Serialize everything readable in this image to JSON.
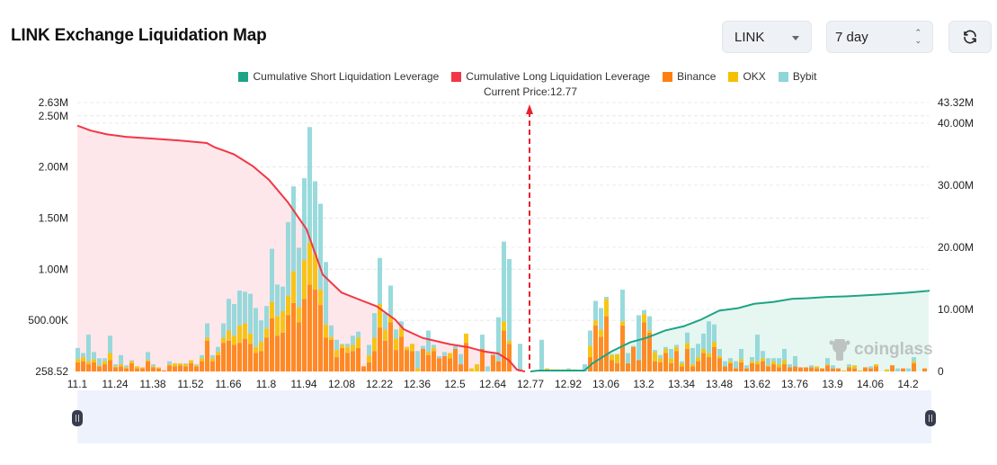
{
  "header": {
    "title": "LINK Exchange Liquidation Map",
    "coin_select": "LINK",
    "period_select": "7 day",
    "refresh_icon": "refresh-icon"
  },
  "legend": [
    {
      "label": "Cumulative Short Liquidation Leverage",
      "color": "#1fa386"
    },
    {
      "label": "Cumulative Long Liquidation Leverage",
      "color": "#f23645"
    },
    {
      "label": "Binance",
      "color": "#ff7f0e"
    },
    {
      "label": "OKX",
      "color": "#f5c000"
    },
    {
      "label": "Bybit",
      "color": "#8ed6d8"
    }
  ],
  "current_price_label": "Current Price:12.77",
  "watermark": "coinglass",
  "chart_data": {
    "type": "bar",
    "stacked": true,
    "current_price": 12.77,
    "ylim": [
      0,
      2.63
    ],
    "y2lim": [
      0,
      43.32
    ],
    "grid": true,
    "legend_position": "top",
    "x_tick_labels": [
      "11.1",
      "11.24",
      "11.38",
      "11.52",
      "11.66",
      "11.8",
      "11.94",
      "12.08",
      "12.22",
      "12.36",
      "12.5",
      "12.64",
      "12.77",
      "12.92",
      "13.06",
      "13.2",
      "13.34",
      "13.48",
      "13.62",
      "13.76",
      "13.9",
      "14.06",
      "14.2"
    ],
    "y_ticks": [
      {
        "value": 0.00025852,
        "label": "258.52"
      },
      {
        "value": 0.5,
        "label": "500.00K"
      },
      {
        "value": 1.0,
        "label": "1.00M"
      },
      {
        "value": 1.5,
        "label": "1.50M"
      },
      {
        "value": 2.0,
        "label": "2.00M"
      },
      {
        "value": 2.5,
        "label": "2.50M"
      },
      {
        "value": 2.63,
        "label": "2.63M"
      }
    ],
    "y2_ticks": [
      {
        "value": 0,
        "label": "0"
      },
      {
        "value": 10,
        "label": "10.00M"
      },
      {
        "value": 20,
        "label": "20.00M"
      },
      {
        "value": 30,
        "label": "30.00M"
      },
      {
        "value": 40,
        "label": "40.00M"
      },
      {
        "value": 43.32,
        "label": "43.32M"
      }
    ],
    "prices": [
      11.1,
      11.12,
      11.14,
      11.16,
      11.18,
      11.2,
      11.22,
      11.24,
      11.26,
      11.28,
      11.3,
      11.32,
      11.34,
      11.36,
      11.38,
      11.4,
      11.42,
      11.44,
      11.46,
      11.48,
      11.5,
      11.52,
      11.54,
      11.56,
      11.58,
      11.6,
      11.62,
      11.64,
      11.66,
      11.68,
      11.7,
      11.72,
      11.74,
      11.76,
      11.78,
      11.8,
      11.82,
      11.84,
      11.86,
      11.88,
      11.9,
      11.92,
      11.94,
      11.96,
      11.98,
      12,
      12.02,
      12.04,
      12.06,
      12.08,
      12.1,
      12.12,
      12.14,
      12.16,
      12.18,
      12.2,
      12.22,
      12.24,
      12.26,
      12.28,
      12.3,
      12.32,
      12.34,
      12.36,
      12.38,
      12.4,
      12.42,
      12.44,
      12.46,
      12.48,
      12.5,
      12.52,
      12.54,
      12.56,
      12.58,
      12.6,
      12.62,
      12.64,
      12.66,
      12.68,
      12.7,
      12.72,
      12.74,
      12.76,
      12.78,
      12.8,
      12.82,
      12.84,
      12.86,
      12.88,
      12.9,
      12.92,
      12.94,
      12.96,
      12.98,
      13,
      13.02,
      13.04,
      13.06,
      13.08,
      13.1,
      13.12,
      13.14,
      13.16,
      13.18,
      13.2,
      13.22,
      13.24,
      13.26,
      13.28,
      13.3,
      13.32,
      13.34,
      13.36,
      13.38,
      13.4,
      13.42,
      13.44,
      13.46,
      13.48,
      13.5,
      13.52,
      13.54,
      13.56,
      13.58,
      13.6,
      13.62,
      13.64,
      13.66,
      13.68,
      13.7,
      13.72,
      13.74,
      13.76,
      13.78,
      13.8,
      13.82,
      13.84,
      13.86,
      13.88,
      13.9,
      13.92,
      13.94,
      13.96,
      13.98,
      14,
      14.02,
      14.04,
      14.06,
      14.08,
      14.1,
      14.12,
      14.14,
      14.16,
      14.18,
      14.2,
      14.22,
      14.24
    ],
    "series": [
      {
        "name": "Binance",
        "color": "#ff7f0e",
        "values": [
          0.09,
          0.1,
          0.07,
          0.09,
          0.05,
          0.07,
          0.11,
          0.04,
          0.05,
          0.03,
          0.08,
          0.03,
          0.03,
          0.1,
          0.04,
          0.03,
          0.01,
          0.06,
          0.05,
          0.06,
          0.05,
          0.08,
          0.05,
          0.1,
          0.3,
          0.1,
          0.16,
          0.28,
          0.3,
          0.26,
          0.28,
          0.32,
          0.27,
          0.18,
          0.2,
          0.33,
          0.52,
          0.35,
          0.38,
          0.55,
          0.67,
          0.48,
          0.71,
          0.85,
          0.8,
          0.65,
          0.33,
          0.31,
          0.14,
          0.23,
          0.18,
          0.2,
          0.23,
          0.05,
          0.09,
          0.2,
          0.43,
          0.3,
          0.48,
          0.21,
          0.34,
          0.21,
          0.2,
          0,
          0.22,
          0.16,
          0.2,
          0.13,
          0.15,
          0.13,
          0.22,
          0.07,
          0.28,
          0,
          0,
          0.22,
          0,
          0.16,
          0.1,
          0.4,
          0.27,
          0,
          0.01,
          0,
          0,
          0,
          0,
          0,
          0,
          0.01,
          0,
          0,
          0,
          0,
          0,
          0.14,
          0.45,
          0.34,
          0.54,
          0.11,
          0.08,
          0.45,
          0.08,
          0.24,
          0.11,
          0.48,
          0.38,
          0.1,
          0.09,
          0.18,
          0.08,
          0.2,
          0.05,
          0.22,
          0.05,
          0.1,
          0.18,
          0.14,
          0.24,
          0.13,
          0.05,
          0.08,
          0.03,
          0.09,
          0.03,
          0.08,
          0.07,
          0.1,
          0.05,
          0.07,
          0.04,
          0.07,
          0.04,
          0.05,
          0.04,
          0.04,
          0.04,
          0.03,
          0.03,
          0.06,
          0.03,
          0.03,
          0,
          0.04,
          0.03,
          0,
          0.04,
          0.03,
          0.05,
          0,
          0,
          0.06,
          0,
          0.03,
          0,
          0.08,
          0,
          0.03
        ]
      },
      {
        "name": "OKX",
        "color": "#f5c000",
        "values": [
          0.03,
          0.04,
          0.03,
          0.03,
          0.01,
          0.03,
          0.07,
          0.01,
          0.02,
          0.01,
          0.02,
          0.02,
          0.01,
          0.01,
          0.01,
          0.01,
          0,
          0.01,
          0.03,
          0.02,
          0.02,
          0.03,
          0.01,
          0.03,
          0.03,
          0.03,
          0.03,
          0.05,
          0.1,
          0.09,
          0.17,
          0.15,
          0.1,
          0.06,
          0.09,
          0.09,
          0.16,
          0.19,
          0.21,
          0.19,
          0.31,
          0.15,
          0.38,
          0.41,
          0.35,
          0.15,
          0.13,
          0.03,
          0.07,
          0.03,
          0.06,
          0.06,
          0.1,
          0,
          0.07,
          0.13,
          0.23,
          0.11,
          0.06,
          0.11,
          0.09,
          0.03,
          0.07,
          0.03,
          0,
          0.03,
          0.03,
          0,
          0,
          0.05,
          0,
          0,
          0.09,
          0.03,
          0.07,
          0,
          0,
          0,
          0,
          0.09,
          0.03,
          0,
          0,
          0,
          0,
          0,
          0,
          0.03,
          0.02,
          0.01,
          0.02,
          0.02,
          0.02,
          0.01,
          0,
          0.11,
          0.05,
          0.07,
          0.17,
          0.05,
          0.09,
          0.04,
          0,
          0,
          0,
          0.08,
          0.02,
          0.09,
          0.04,
          0.04,
          0.05,
          0.04,
          0.03,
          0.06,
          0.02,
          0.04,
          0.04,
          0.04,
          0.05,
          0.02,
          0,
          0.02,
          0,
          0.03,
          0,
          0.02,
          0.03,
          0.03,
          0.01,
          0.03,
          0.03,
          0.04,
          0,
          0,
          0,
          0,
          0,
          0.02,
          0,
          0.01,
          0,
          0,
          0.01,
          0.01,
          0.03,
          0.01,
          0,
          0,
          0.02,
          0,
          0.02,
          0,
          0,
          0,
          0,
          0.02,
          0,
          0
        ]
      },
      {
        "name": "Bybit",
        "color": "#8ed6d8",
        "values": [
          0.11,
          0.04,
          0.26,
          0.07,
          0.07,
          0.03,
          0.17,
          0.02,
          0.09,
          0.02,
          0.01,
          0,
          0,
          0.08,
          0.02,
          0,
          0,
          0.03,
          0,
          0,
          0.01,
          0,
          0.01,
          0.03,
          0.14,
          0.03,
          0.05,
          0.14,
          0.31,
          0.31,
          0.34,
          0.31,
          0.39,
          0.38,
          0.21,
          0.22,
          0.52,
          0.31,
          0.24,
          0.72,
          0.83,
          0.58,
          0.8,
          1.13,
          0.71,
          0.84,
          0.61,
          0.11,
          0.1,
          0.01,
          0.03,
          0.09,
          0.06,
          0,
          0.1,
          0.24,
          0.45,
          0.16,
          0.3,
          0.09,
          0.06,
          0,
          0,
          0.17,
          0.03,
          0.21,
          0.03,
          0.02,
          0.04,
          0,
          0.03,
          0.1,
          0,
          0,
          0,
          0.14,
          0.05,
          0.01,
          0.43,
          0.78,
          0.8,
          0,
          0.26,
          0,
          0,
          0,
          0.31,
          0,
          0,
          0,
          0,
          0.01,
          0,
          0,
          0.07,
          0.15,
          0.19,
          0.21,
          0.02,
          0.01,
          0,
          0.31,
          0.1,
          0.01,
          0.44,
          0.04,
          0.14,
          0.02,
          0.03,
          0.02,
          0.09,
          0.02,
          0.02,
          0.1,
          0.16,
          0.13,
          0.15,
          0.31,
          0.17,
          0.07,
          0.05,
          0.03,
          0.07,
          0.1,
          0.03,
          0.04,
          0.26,
          0.07,
          0.07,
          0.03,
          0.06,
          0.11,
          0.03,
          0.1,
          0,
          0,
          0.02,
          0,
          0,
          0.06,
          0.03,
          0,
          0,
          0.02,
          0,
          0,
          0,
          0.02,
          0,
          0,
          0,
          0,
          0.03,
          0,
          0.03,
          0.04,
          0,
          0
        ]
      }
    ],
    "lines": [
      {
        "name": "Cumulative Long Liquidation Leverage",
        "color": "#f23645",
        "fill": "#fde7ea",
        "axis": "right",
        "points": [
          [
            11.1,
            39.6
          ],
          [
            11.15,
            38.8
          ],
          [
            11.21,
            38.2
          ],
          [
            11.28,
            37.8
          ],
          [
            11.38,
            37.5
          ],
          [
            11.48,
            37.2
          ],
          [
            11.58,
            36.8
          ],
          [
            11.61,
            36.1
          ],
          [
            11.68,
            35.0
          ],
          [
            11.75,
            33.1
          ],
          [
            11.81,
            30.9
          ],
          [
            11.88,
            27.3
          ],
          [
            11.95,
            22.9
          ],
          [
            12.01,
            15.6
          ],
          [
            12.08,
            12.7
          ],
          [
            12.15,
            11.5
          ],
          [
            12.21,
            10.5
          ],
          [
            12.28,
            8.3
          ],
          [
            12.31,
            6.8
          ],
          [
            12.38,
            5.4
          ],
          [
            12.48,
            4.4
          ],
          [
            12.55,
            3.9
          ],
          [
            12.61,
            3.2
          ],
          [
            12.66,
            2.9
          ],
          [
            12.7,
            1.8
          ],
          [
            12.73,
            0.3
          ],
          [
            12.76,
            0
          ]
        ]
      },
      {
        "name": "Cumulative Short Liquidation Leverage",
        "color": "#1fa386",
        "fill": "#e6f6f1",
        "axis": "right",
        "points": [
          [
            12.78,
            0
          ],
          [
            12.81,
            0.15
          ],
          [
            12.98,
            0.15
          ],
          [
            13.01,
            1.3
          ],
          [
            13.08,
            3.2
          ],
          [
            13.15,
            4.7
          ],
          [
            13.21,
            5.4
          ],
          [
            13.28,
            6.6
          ],
          [
            13.35,
            7.3
          ],
          [
            13.41,
            8.3
          ],
          [
            13.48,
            9.8
          ],
          [
            13.55,
            10.2
          ],
          [
            13.61,
            10.9
          ],
          [
            13.68,
            11.2
          ],
          [
            13.75,
            11.7
          ],
          [
            13.81,
            11.8
          ],
          [
            13.88,
            12.0
          ],
          [
            13.95,
            12.1
          ],
          [
            14.08,
            12.4
          ],
          [
            14.18,
            12.7
          ],
          [
            14.26,
            13.0
          ]
        ]
      }
    ]
  }
}
